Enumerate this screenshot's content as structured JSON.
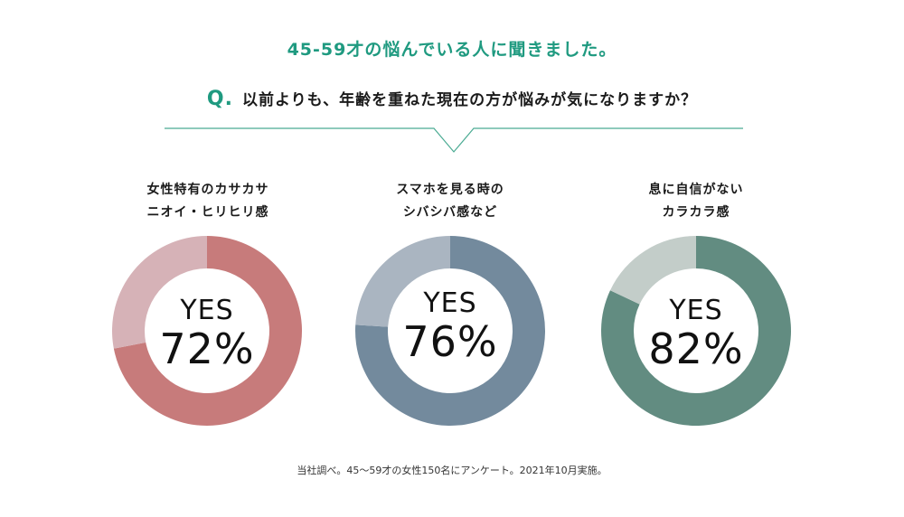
{
  "headline": "45-59才の悩んでいる人に聞きました。",
  "question": {
    "mark": "Q.",
    "text": "以前よりも、年齢を重ねた現在の方が悩みが気になりますか？"
  },
  "footnote": "当社調べ。45～59才の女性150名にアンケート。2021年10月実施。",
  "colors": {
    "accent": "#1f9a80",
    "divider": "#4bab93"
  },
  "chart_data": [
    {
      "type": "pie",
      "title_lines": [
        "女性特有のカサカサ",
        "ニオイ・ヒリヒリ感"
      ],
      "center_label": "YES",
      "center_value": "72%",
      "categories": [
        "YES",
        ""
      ],
      "values": [
        72,
        28
      ],
      "colors": [
        "#c77b7b",
        "#d6b2b7"
      ]
    },
    {
      "type": "pie",
      "title_lines": [
        "スマホを見る時の",
        "シバシバ感など"
      ],
      "center_label": "YES",
      "center_value": "76%",
      "categories": [
        "YES",
        ""
      ],
      "values": [
        76,
        24
      ],
      "colors": [
        "#738a9d",
        "#aab5c1"
      ]
    },
    {
      "type": "pie",
      "title_lines": [
        "息に自信がない",
        "カラカラ感"
      ],
      "center_label": "YES",
      "center_value": "82%",
      "categories": [
        "YES",
        ""
      ],
      "values": [
        82,
        18
      ],
      "colors": [
        "#628c81",
        "#c3cdc9"
      ]
    }
  ]
}
